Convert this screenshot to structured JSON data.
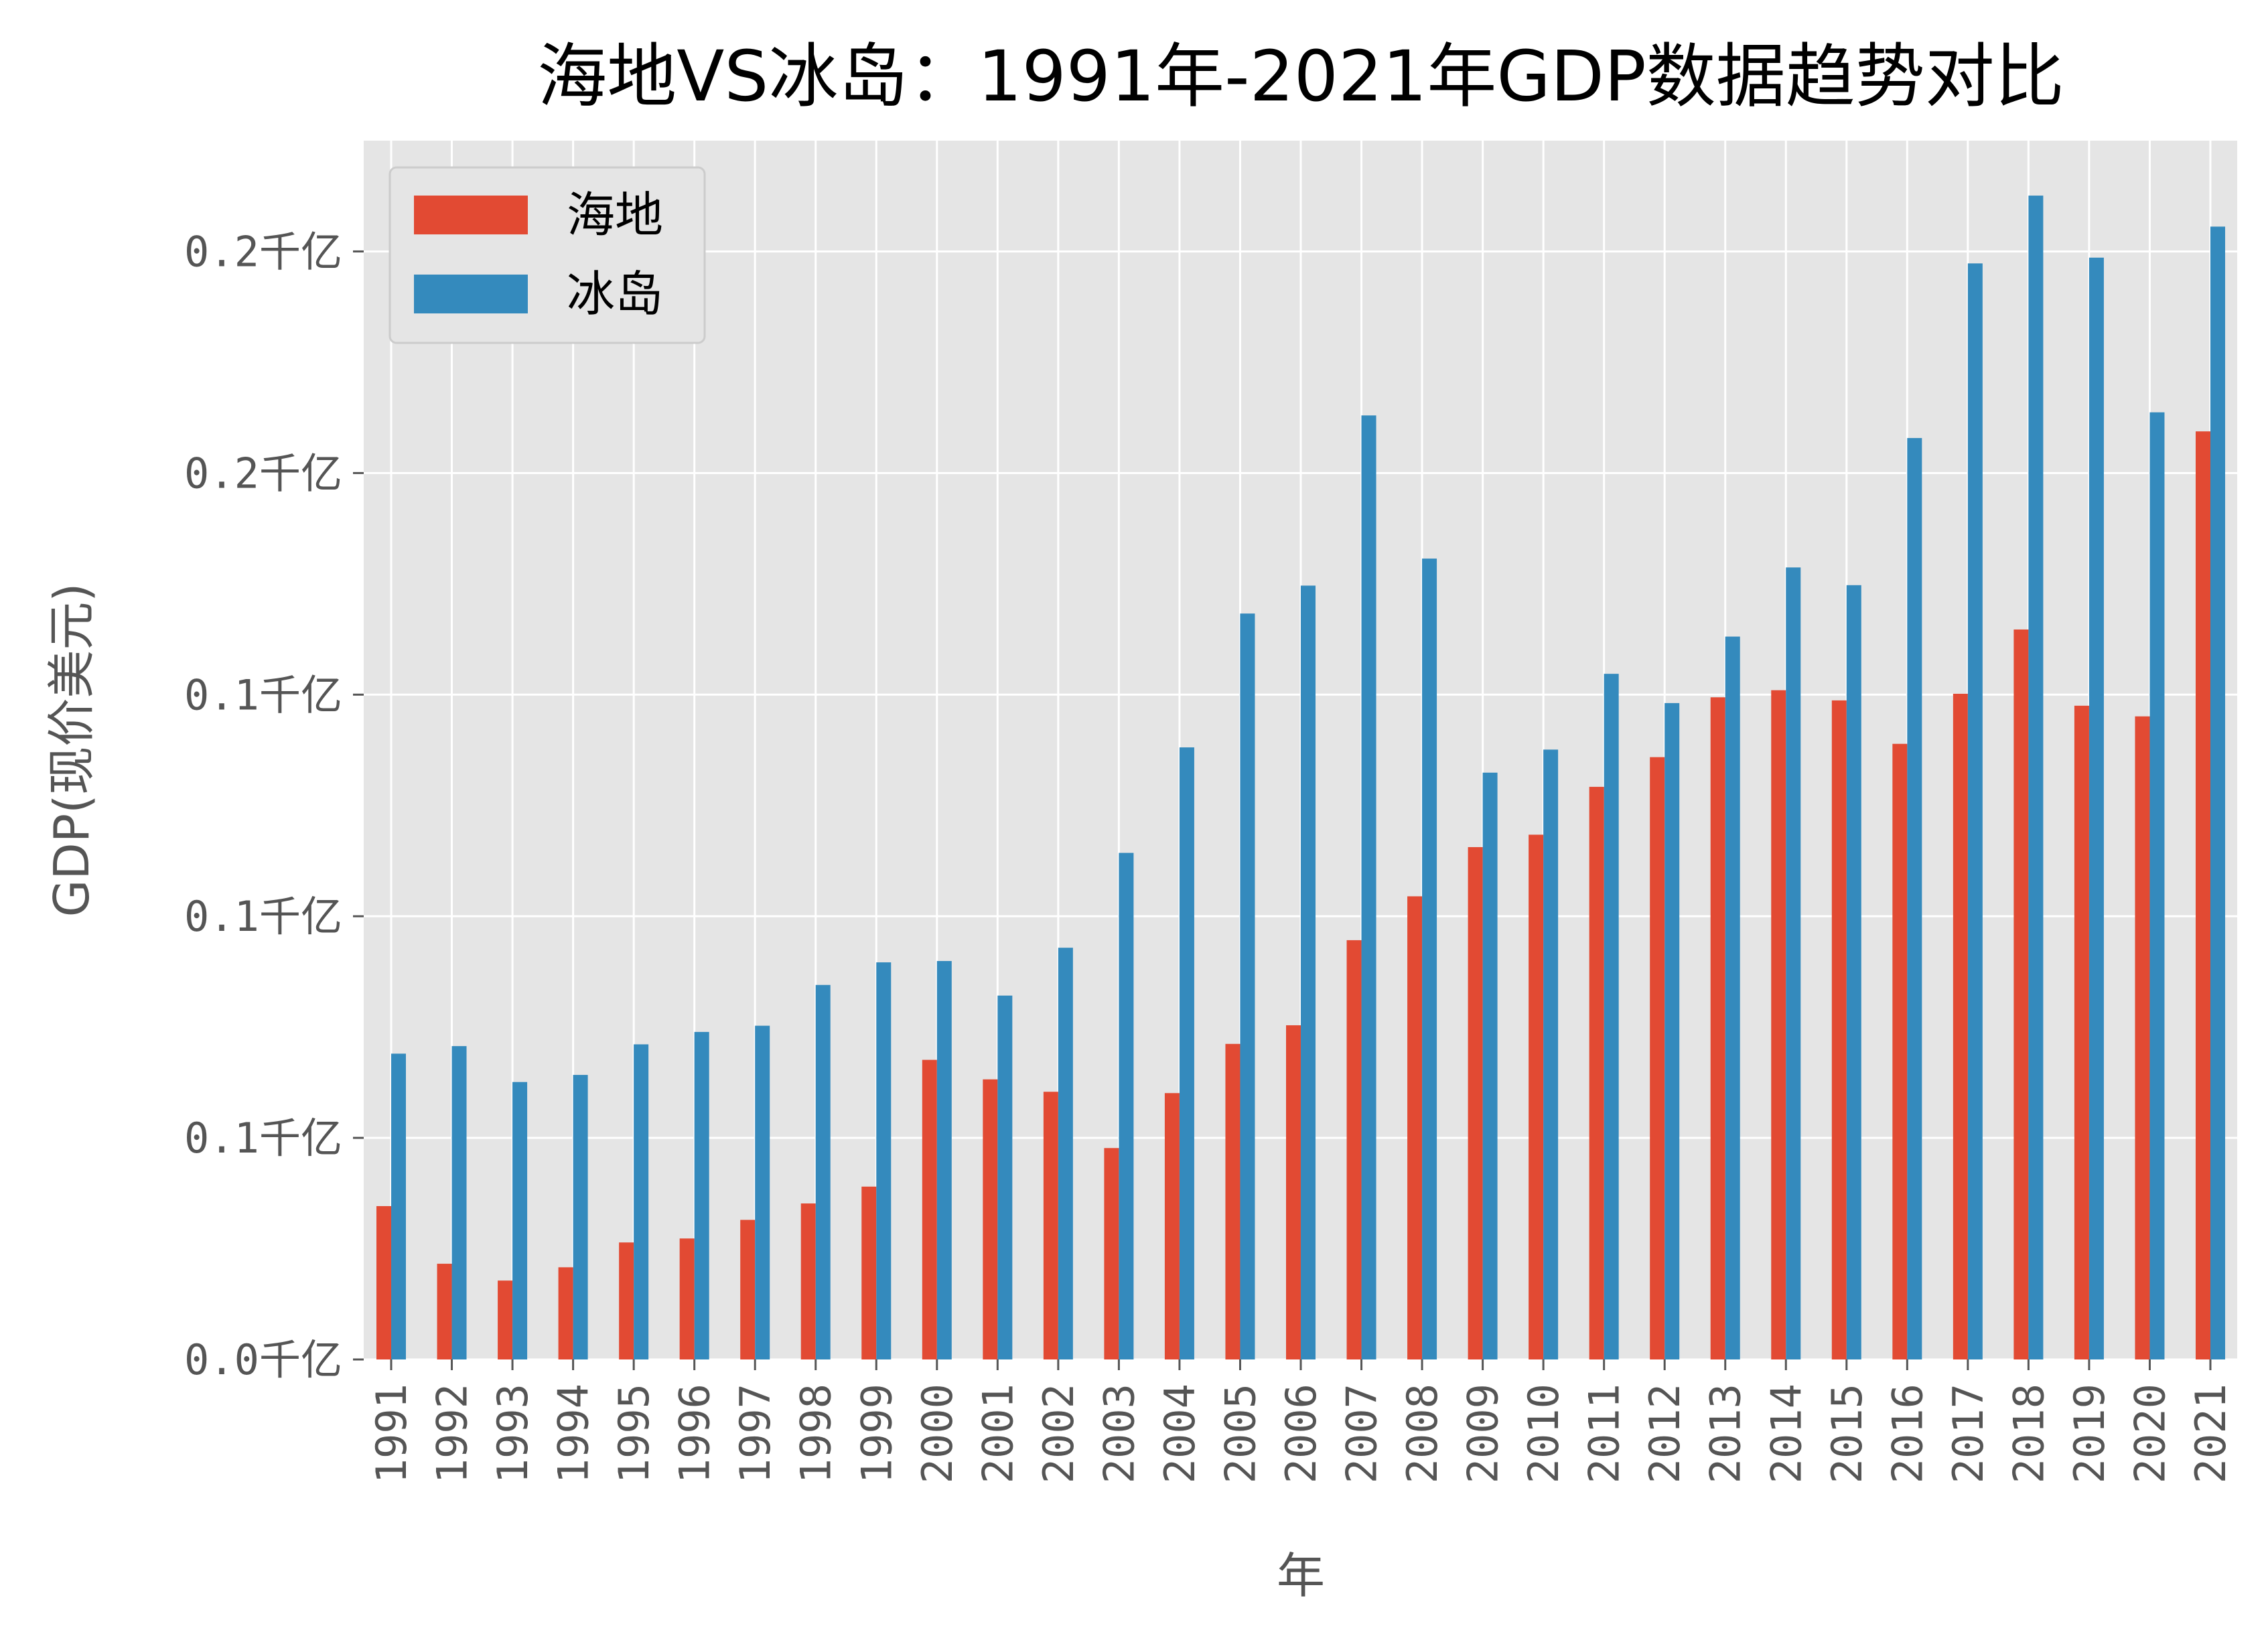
{
  "chart_data": {
    "type": "bar",
    "title": "海地VS冰岛：1991年-2021年GDP数据趋势对比",
    "xlabel": "年",
    "ylabel": "GDP(现价美元)",
    "categories": [
      "1991",
      "1992",
      "1993",
      "1994",
      "1995",
      "1996",
      "1997",
      "1998",
      "1999",
      "2000",
      "2001",
      "2002",
      "2003",
      "2004",
      "2005",
      "2006",
      "2007",
      "2008",
      "2009",
      "2010",
      "2011",
      "2012",
      "2013",
      "2014",
      "2015",
      "2016",
      "2017",
      "2018",
      "2019",
      "2020",
      "2021"
    ],
    "series": [
      {
        "name": "海地",
        "color": "#E24A33",
        "values": [
          3.46,
          2.16,
          1.78,
          2.08,
          2.64,
          2.73,
          3.15,
          3.52,
          3.9,
          6.76,
          6.32,
          6.04,
          4.77,
          6.01,
          7.12,
          7.54,
          9.46,
          10.45,
          11.56,
          11.84,
          12.92,
          13.59,
          14.94,
          15.1,
          14.87,
          13.89,
          15.02,
          16.47,
          14.75,
          14.51,
          20.94
        ]
      },
      {
        "name": "冰岛",
        "color": "#348ABD",
        "values": [
          6.9,
          7.07,
          6.26,
          6.42,
          7.11,
          7.39,
          7.53,
          8.45,
          8.96,
          8.99,
          8.21,
          9.29,
          11.43,
          13.81,
          16.83,
          17.46,
          21.3,
          18.07,
          13.24,
          13.76,
          15.47,
          14.81,
          16.31,
          17.87,
          17.47,
          20.79,
          24.73,
          26.26,
          24.86,
          21.37,
          25.56
        ]
      }
    ],
    "yticks": [
      0,
      5,
      10,
      15,
      20,
      25
    ],
    "ytick_labels": [
      "0.0千亿",
      "0.1千亿",
      "0.1千亿",
      "0.1千亿",
      "0.2千亿",
      "0.2千亿"
    ],
    "ylim": [
      0,
      27.5
    ],
    "grid": true,
    "legend_position": "top-left",
    "background": "#E5E5E5"
  }
}
